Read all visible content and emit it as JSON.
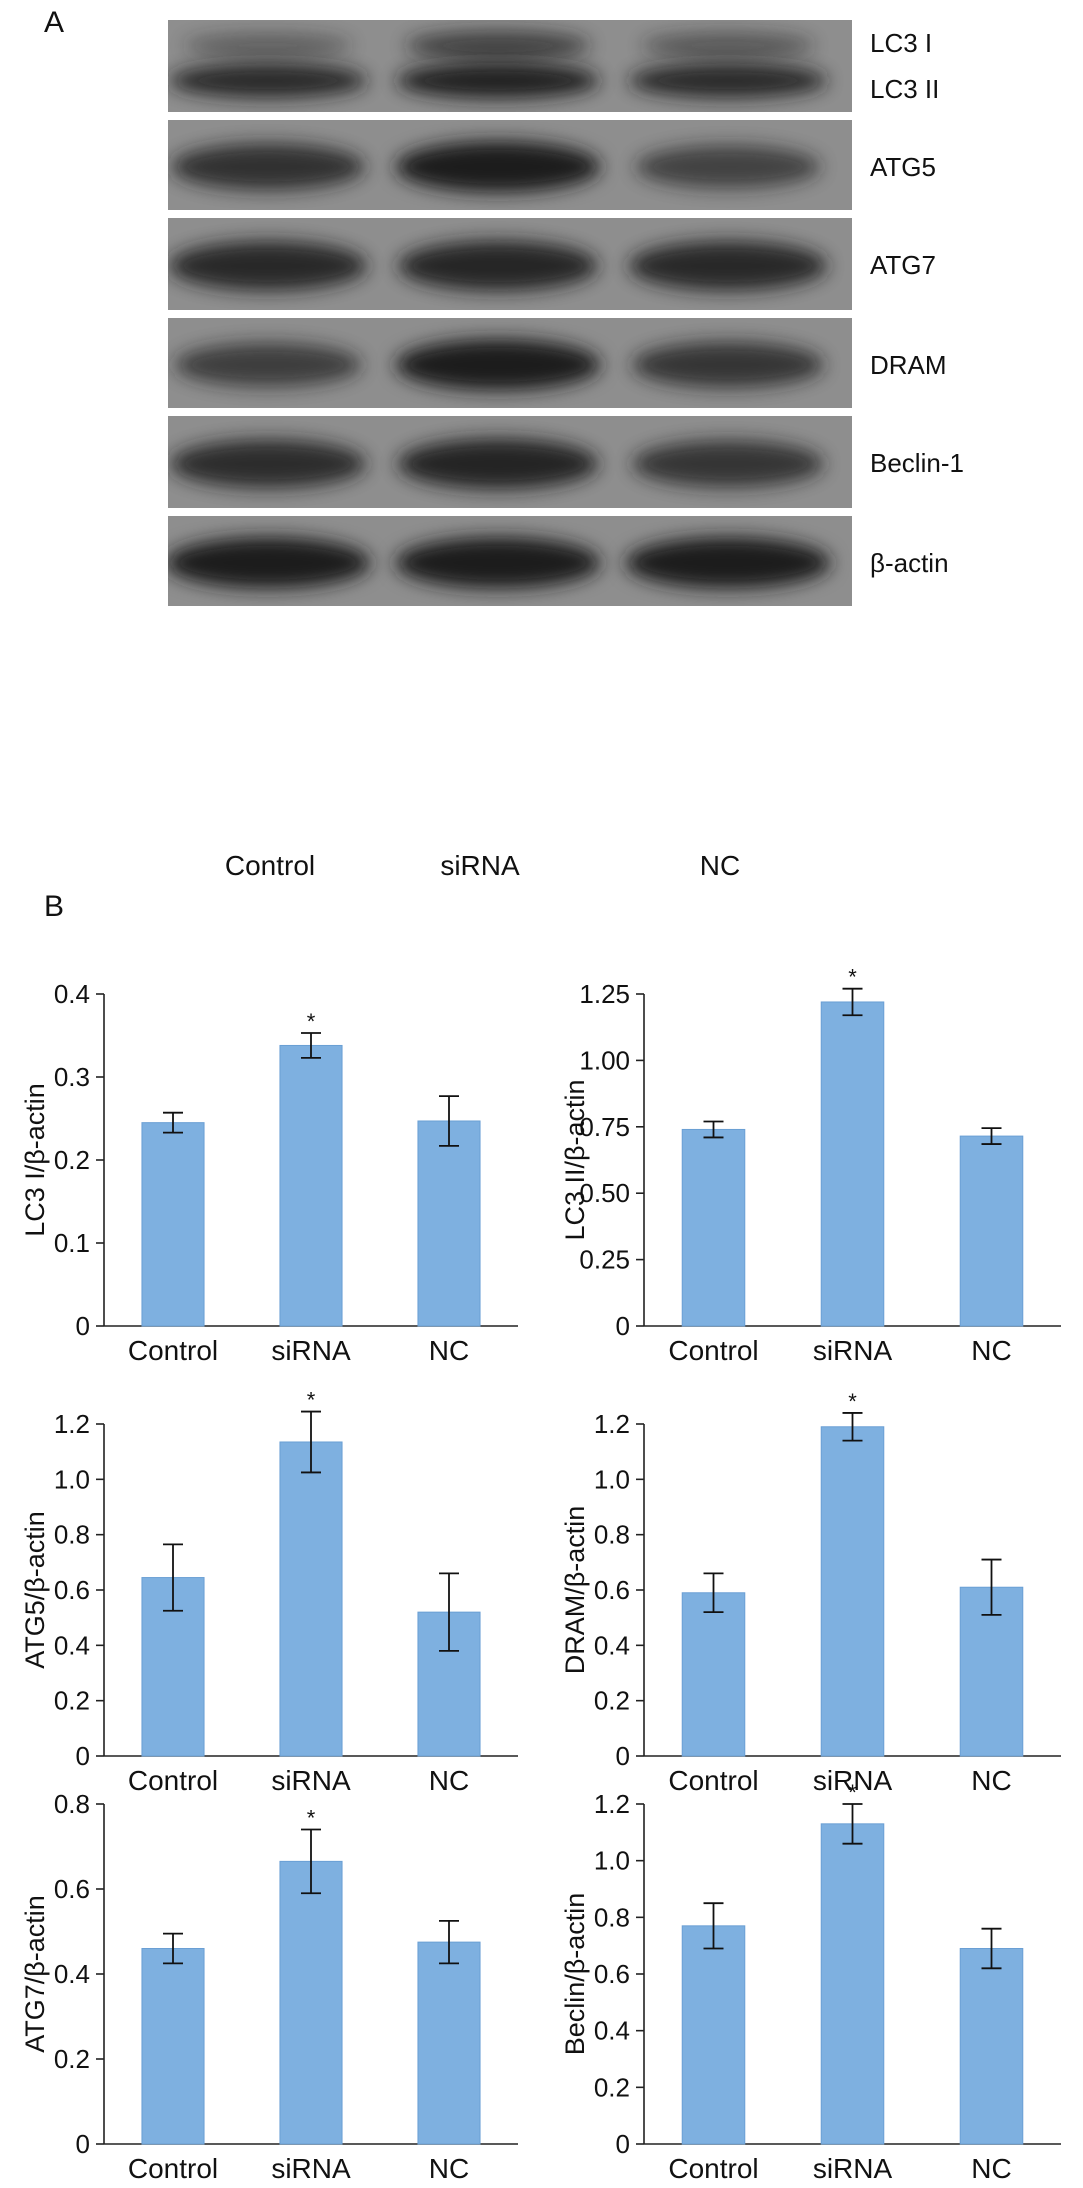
{
  "panel_a": {
    "letter": "A",
    "lanes": [
      "Control",
      "siRNA",
      "NC"
    ],
    "blots": [
      {
        "labels": [
          "LC3 I",
          "LC3 II"
        ],
        "bands": [
          [
            0.2,
            0.55,
            0.3
          ],
          [
            0.85,
            0.95,
            0.85
          ]
        ]
      },
      {
        "labels": [
          "ATG5"
        ],
        "bands": [
          [
            0.75,
            1.0,
            0.55
          ]
        ]
      },
      {
        "labels": [
          "ATG7"
        ],
        "bands": [
          [
            0.85,
            0.88,
            0.85
          ]
        ]
      },
      {
        "labels": [
          "DRAM"
        ],
        "bands": [
          [
            0.6,
            1.0,
            0.7
          ]
        ]
      },
      {
        "labels": [
          "Beclin-1"
        ],
        "bands": [
          [
            0.8,
            0.9,
            0.7
          ]
        ]
      },
      {
        "labels": [
          "β-actin"
        ],
        "bands": [
          [
            1.0,
            1.0,
            1.0
          ]
        ]
      }
    ]
  },
  "panel_b": {
    "letter": "B"
  },
  "colors": {
    "bar": "#7eb0e0",
    "bar_edge": "#6a9fd4",
    "band": "#1b1b1b",
    "blot_bg": "#8e8e8e"
  },
  "chart_data": [
    {
      "type": "bar",
      "ylabel": "LC3 I/β-actin",
      "categories": [
        "Control",
        "siRNA",
        "NC"
      ],
      "values": [
        0.245,
        0.338,
        0.247
      ],
      "errors": [
        0.012,
        0.015,
        0.03
      ],
      "significant": [
        "",
        "*",
        ""
      ],
      "ylim": [
        0,
        0.4
      ],
      "yticks": [
        0,
        0.1,
        0.2,
        0.3,
        0.4
      ],
      "ytick_labels": [
        "0",
        "0.1",
        "0.2",
        "0.3",
        "0.4"
      ]
    },
    {
      "type": "bar",
      "ylabel": "LC3 II/β-actin",
      "categories": [
        "Control",
        "siRNA",
        "NC"
      ],
      "values": [
        0.74,
        1.22,
        0.715
      ],
      "errors": [
        0.03,
        0.05,
        0.03
      ],
      "significant": [
        "",
        "*",
        ""
      ],
      "ylim": [
        0,
        1.25
      ],
      "yticks": [
        0,
        0.25,
        0.5,
        0.75,
        1.0,
        1.25
      ],
      "ytick_labels": [
        "0",
        "0.25",
        "0.50",
        "0.75",
        "1.00",
        "1.25"
      ]
    },
    {
      "type": "bar",
      "ylabel": "ATG5/β-actin",
      "categories": [
        "Control",
        "siRNA",
        "NC"
      ],
      "values": [
        0.645,
        1.135,
        0.52
      ],
      "errors": [
        0.12,
        0.11,
        0.14
      ],
      "significant": [
        "",
        "*",
        ""
      ],
      "ylim": [
        0,
        1.2
      ],
      "yticks": [
        0,
        0.2,
        0.4,
        0.6,
        0.8,
        1.0,
        1.2
      ],
      "ytick_labels": [
        "0",
        "0.2",
        "0.4",
        "0.6",
        "0.8",
        "1.0",
        "1.2"
      ]
    },
    {
      "type": "bar",
      "ylabel": "DRAM/β-actin",
      "categories": [
        "Control",
        "siRNA",
        "NC"
      ],
      "values": [
        0.59,
        1.19,
        0.61
      ],
      "errors": [
        0.07,
        0.05,
        0.1
      ],
      "significant": [
        "",
        "*",
        ""
      ],
      "ylim": [
        0,
        1.2
      ],
      "yticks": [
        0,
        0.2,
        0.4,
        0.6,
        0.8,
        1.0,
        1.2
      ],
      "ytick_labels": [
        "0",
        "0.2",
        "0.4",
        "0.6",
        "0.8",
        "1.0",
        "1.2"
      ]
    },
    {
      "type": "bar",
      "ylabel": "ATG7/β-actin",
      "categories": [
        "Control",
        "siRNA",
        "NC"
      ],
      "values": [
        0.46,
        0.665,
        0.475
      ],
      "errors": [
        0.035,
        0.075,
        0.05
      ],
      "significant": [
        "",
        "*",
        ""
      ],
      "ylim": [
        0,
        0.8
      ],
      "yticks": [
        0,
        0.2,
        0.4,
        0.6,
        0.8
      ],
      "ytick_labels": [
        "0",
        "0.2",
        "0.4",
        "0.6",
        "0.8"
      ]
    },
    {
      "type": "bar",
      "ylabel": "Beclin/β-actin",
      "categories": [
        "Control",
        "siRNA",
        "NC"
      ],
      "values": [
        0.77,
        1.13,
        0.69
      ],
      "errors": [
        0.08,
        0.07,
        0.07
      ],
      "significant": [
        "",
        "*",
        ""
      ],
      "ylim": [
        0,
        1.2
      ],
      "yticks": [
        0,
        0.2,
        0.4,
        0.6,
        0.8,
        1.0,
        1.2
      ],
      "ytick_labels": [
        "0",
        "0.2",
        "0.4",
        "0.6",
        "0.8",
        "1.0",
        "1.2"
      ]
    }
  ]
}
